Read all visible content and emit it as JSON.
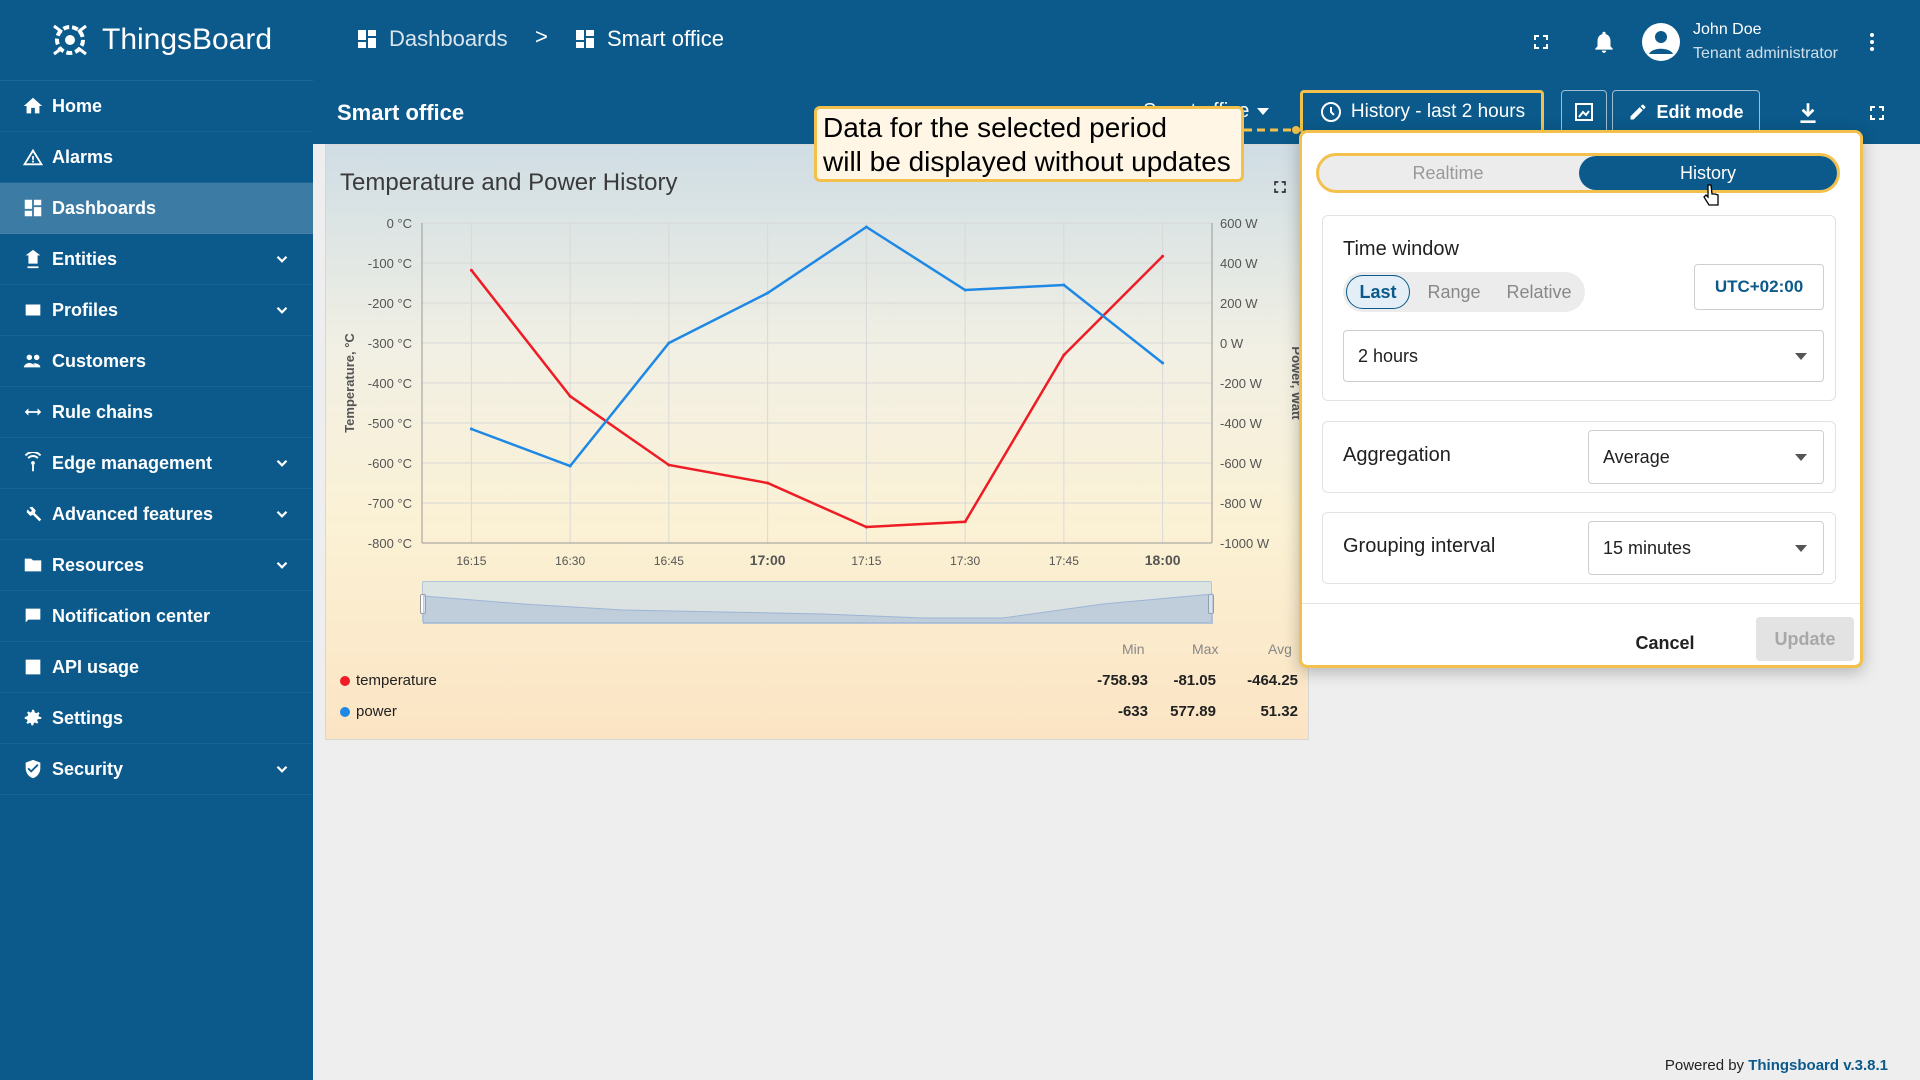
{
  "app": {
    "name": "ThingsBoard"
  },
  "sidebar": {
    "items": [
      {
        "label": "Home",
        "icon": "home-icon",
        "expandable": false
      },
      {
        "label": "Alarms",
        "icon": "warning-icon",
        "expandable": false
      },
      {
        "label": "Dashboards",
        "icon": "dashboard-icon",
        "expandable": false,
        "active": true
      },
      {
        "label": "Entities",
        "icon": "entities-icon",
        "expandable": true
      },
      {
        "label": "Profiles",
        "icon": "profiles-icon",
        "expandable": true
      },
      {
        "label": "Customers",
        "icon": "customers-icon",
        "expandable": false
      },
      {
        "label": "Rule chains",
        "icon": "rule-chain-icon",
        "expandable": false
      },
      {
        "label": "Edge management",
        "icon": "edge-icon",
        "expandable": true
      },
      {
        "label": "Advanced features",
        "icon": "tools-icon",
        "expandable": true
      },
      {
        "label": "Resources",
        "icon": "folder-icon",
        "expandable": true
      },
      {
        "label": "Notification center",
        "icon": "notification-icon",
        "expandable": false
      },
      {
        "label": "API usage",
        "icon": "chart-icon",
        "expandable": false
      },
      {
        "label": "Settings",
        "icon": "gear-icon",
        "expandable": false
      },
      {
        "label": "Security",
        "icon": "shield-icon",
        "expandable": true
      }
    ]
  },
  "breadcrumb": {
    "first": "Dashboards",
    "separator": ">",
    "second": "Smart office"
  },
  "user": {
    "name": "John Doe",
    "role": "Tenant administrator"
  },
  "toolbar": {
    "title": "Smart office",
    "state_select": "Smart office",
    "timewindow_label": "History - last 2 hours",
    "edit_label": "Edit mode"
  },
  "callout": {
    "line1": "Data for the selected period",
    "line2": "will be displayed without updates"
  },
  "popup": {
    "tabs": {
      "realtime": "Realtime",
      "history": "History",
      "selected": "History"
    },
    "time_window": {
      "title": "Time window",
      "options": [
        "Last",
        "Range",
        "Relative"
      ],
      "selected": "Last",
      "timezone": "UTC+02:00",
      "duration": "2 hours"
    },
    "aggregation": {
      "label": "Aggregation",
      "value": "Average"
    },
    "grouping": {
      "label": "Grouping interval",
      "value": "15 minutes"
    },
    "cancel": "Cancel",
    "update": "Update"
  },
  "widget": {
    "title": "Temperature and Power History",
    "legend": {
      "headers": [
        "Min",
        "Max",
        "Avg"
      ],
      "rows": [
        {
          "name": "temperature",
          "color": "#ee1c25",
          "min": "-758.93",
          "max": "-81.05",
          "avg": "-464.25"
        },
        {
          "name": "power",
          "color": "#1e88e5",
          "min": "-633",
          "max": "577.89",
          "avg": "51.32"
        }
      ]
    }
  },
  "chart_data": {
    "type": "line",
    "x": [
      "16:15",
      "16:30",
      "16:45",
      "17:00",
      "17:15",
      "17:30",
      "17:45",
      "18:00"
    ],
    "x_bold": [
      "17:00",
      "18:00"
    ],
    "ylabel": "Temperature, °C",
    "ylabel_right": "Power, Watt",
    "ylim": [
      -800,
      0
    ],
    "ylim_right": [
      -1000,
      600
    ],
    "yticks": [
      "0 °C",
      "-100 °C",
      "-200 °C",
      "-300 °C",
      "-400 °C",
      "-500 °C",
      "-600 °C",
      "-700 °C",
      "-800 °C"
    ],
    "yticks_right": [
      "600 W",
      "400 W",
      "200 W",
      "0 W",
      "-200 W",
      "-400 W",
      "-600 W",
      "-800 W",
      "-1000 W"
    ],
    "grid": true,
    "series": [
      {
        "name": "temperature",
        "axis": "left",
        "color": "#ee1c25",
        "values": [
          -118,
          -433,
          -605,
          -650,
          -760,
          -747,
          -330,
          -83
        ]
      },
      {
        "name": "power",
        "axis": "right",
        "color": "#1e88e5",
        "values": [
          -430,
          -615,
          0,
          250,
          580,
          265,
          290,
          -100
        ]
      }
    ]
  },
  "footer": {
    "prefix": "Powered by",
    "link": "Thingsboard v.3.8.1"
  }
}
